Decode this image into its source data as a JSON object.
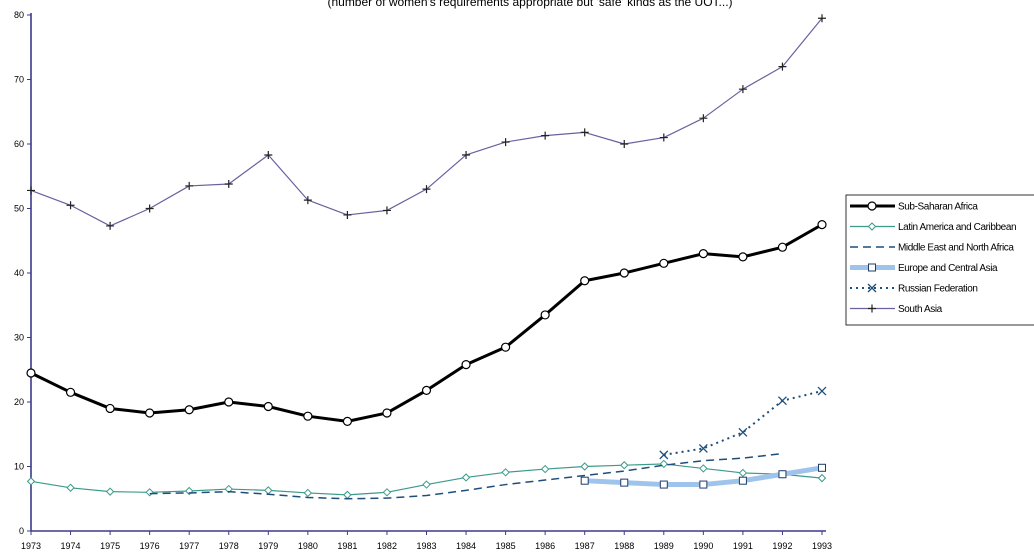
{
  "chart_data": {
    "type": "line",
    "title": "(number of women's requirements appropriate but 'safe' kinds as the UOT...)",
    "x": [
      "1973",
      "1974",
      "1975",
      "1976",
      "1977",
      "1978",
      "1979",
      "1980",
      "1981",
      "1982",
      "1983",
      "1984",
      "1985",
      "1986",
      "1987",
      "1988",
      "1989",
      "1990",
      "1991",
      "1992",
      "1993"
    ],
    "ylim": [
      0,
      80
    ],
    "yticks": [
      0,
      10,
      20,
      30,
      40,
      50,
      60,
      70,
      80
    ],
    "grid": false,
    "legend_position": "right",
    "series": [
      {
        "name": "Sub-Saharan Africa",
        "color": "#000000",
        "style": "thick-circle",
        "values": [
          24.5,
          21.5,
          19.0,
          18.3,
          18.8,
          20.0,
          19.3,
          17.8,
          17.0,
          18.3,
          21.8,
          25.8,
          28.5,
          33.5,
          38.8,
          40.0,
          41.5,
          43.0,
          42.5,
          44.0,
          47.5
        ]
      },
      {
        "name": "Latin America and Caribbean",
        "color": "#3c9a8a",
        "style": "thin-diamond",
        "values": [
          7.7,
          6.7,
          6.1,
          6.0,
          6.2,
          6.5,
          6.3,
          5.9,
          5.6,
          6.0,
          7.2,
          8.3,
          9.1,
          9.6,
          10.0,
          10.2,
          10.4,
          9.7,
          9.0,
          8.8,
          8.2
        ]
      },
      {
        "name": "Middle East and North Africa",
        "color": "#1f4e79",
        "style": "dashed",
        "values": [
          null,
          null,
          null,
          5.8,
          5.9,
          6.1,
          5.7,
          5.2,
          5.0,
          5.1,
          5.5,
          6.3,
          7.2,
          7.9,
          8.6,
          9.3,
          10.2,
          10.9,
          11.3,
          12.0,
          null
        ]
      },
      {
        "name": "Europe and Central Asia",
        "color": "#9ec4ec",
        "style": "thick-square",
        "values": [
          null,
          null,
          null,
          null,
          null,
          null,
          null,
          null,
          null,
          null,
          null,
          null,
          null,
          null,
          7.8,
          7.5,
          7.2,
          7.2,
          7.8,
          8.8,
          9.8
        ]
      },
      {
        "name": "Russian Federation",
        "color": "#1f4e79",
        "style": "dotted-x",
        "values": [
          null,
          null,
          null,
          null,
          null,
          null,
          null,
          null,
          null,
          null,
          null,
          null,
          null,
          null,
          null,
          null,
          11.8,
          12.8,
          15.3,
          20.2,
          21.7
        ]
      },
      {
        "name": "South Asia",
        "color": "#6c5f9e",
        "style": "thin-plus",
        "values": [
          52.8,
          50.5,
          47.3,
          50.0,
          53.5,
          53.8,
          58.3,
          51.3,
          49.0,
          49.7,
          53.0,
          58.3,
          60.3,
          61.3,
          61.8,
          60.0,
          61.0,
          64.0,
          68.5,
          72.0,
          79.5
        ]
      }
    ]
  }
}
